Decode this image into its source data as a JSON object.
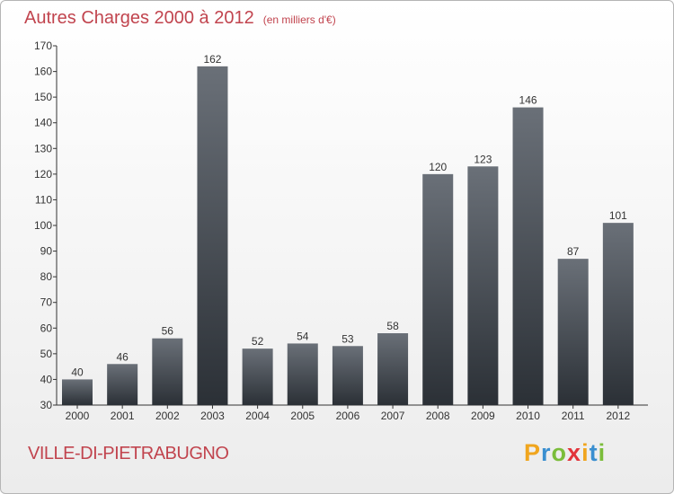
{
  "title": "Autres Charges 2000 à 2012",
  "subtitle": "(en milliers d'€)",
  "commune": "VILLE-DI-PIETRABUGNO",
  "logo": {
    "letters": [
      "P",
      "r",
      "o",
      "x",
      "i",
      "t",
      "i"
    ],
    "colors": [
      "#f0a51e",
      "#3a8fd0",
      "#7bbd3a",
      "#e2343a",
      "#f0a51e",
      "#3a8fd0",
      "#7bbd3a"
    ]
  },
  "chart_data": {
    "type": "bar",
    "categories": [
      "2000",
      "2001",
      "2002",
      "2003",
      "2004",
      "2005",
      "2006",
      "2007",
      "2008",
      "2009",
      "2010",
      "2011",
      "2012"
    ],
    "values": [
      40,
      46,
      56,
      162,
      52,
      54,
      53,
      58,
      120,
      123,
      146,
      87,
      101
    ],
    "title": "Autres Charges 2000 à 2012",
    "xlabel": "",
    "ylabel": "",
    "ylim": [
      30,
      170
    ],
    "yticks": [
      30,
      40,
      50,
      60,
      70,
      80,
      90,
      100,
      110,
      120,
      130,
      140,
      150,
      160,
      170
    ],
    "grid": false,
    "legend": "none"
  }
}
